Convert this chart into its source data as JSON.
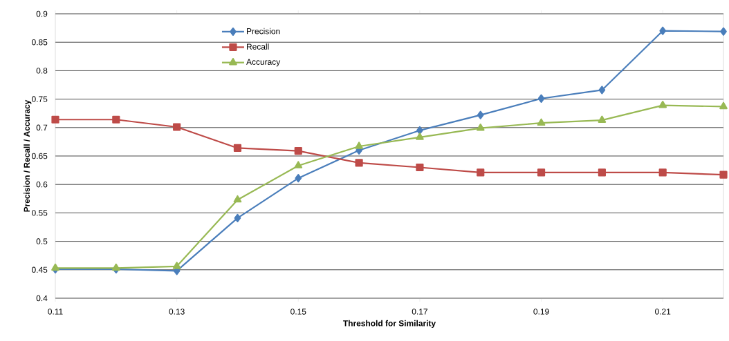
{
  "chart_data": {
    "type": "line",
    "xlabel": "Threshold for Similarity",
    "ylabel": "Precision / Recall / Accuracy",
    "x": [
      0.11,
      0.12,
      0.13,
      0.14,
      0.15,
      0.16,
      0.17,
      0.18,
      0.19,
      0.2,
      0.21,
      0.22
    ],
    "series": [
      {
        "name": "Precision",
        "color": "#4a7ebb",
        "marker": "diamond",
        "values": [
          0.451,
          0.451,
          0.448,
          0.541,
          0.611,
          0.66,
          0.695,
          0.722,
          0.751,
          0.766,
          0.87,
          0.869
        ]
      },
      {
        "name": "Recall",
        "color": "#be4b48",
        "marker": "square",
        "values": [
          0.714,
          0.714,
          0.701,
          0.664,
          0.659,
          0.638,
          0.63,
          0.621,
          0.621,
          0.621,
          0.621,
          0.617
        ]
      },
      {
        "name": "Accuracy",
        "color": "#98b954",
        "marker": "triangle",
        "values": [
          0.453,
          0.453,
          0.456,
          0.573,
          0.633,
          0.667,
          0.683,
          0.699,
          0.708,
          0.713,
          0.739,
          0.737
        ]
      }
    ],
    "xlim": [
      0.11,
      0.22
    ],
    "xticks": [
      0.11,
      0.13,
      0.15,
      0.17,
      0.19,
      0.21
    ],
    "ylim": [
      0.4,
      0.9
    ],
    "yticks": [
      0.4,
      0.45,
      0.5,
      0.55,
      0.6,
      0.65,
      0.7,
      0.75,
      0.8,
      0.85,
      0.9
    ],
    "grid": "y",
    "legend": "top left",
    "line_style": "solid"
  }
}
